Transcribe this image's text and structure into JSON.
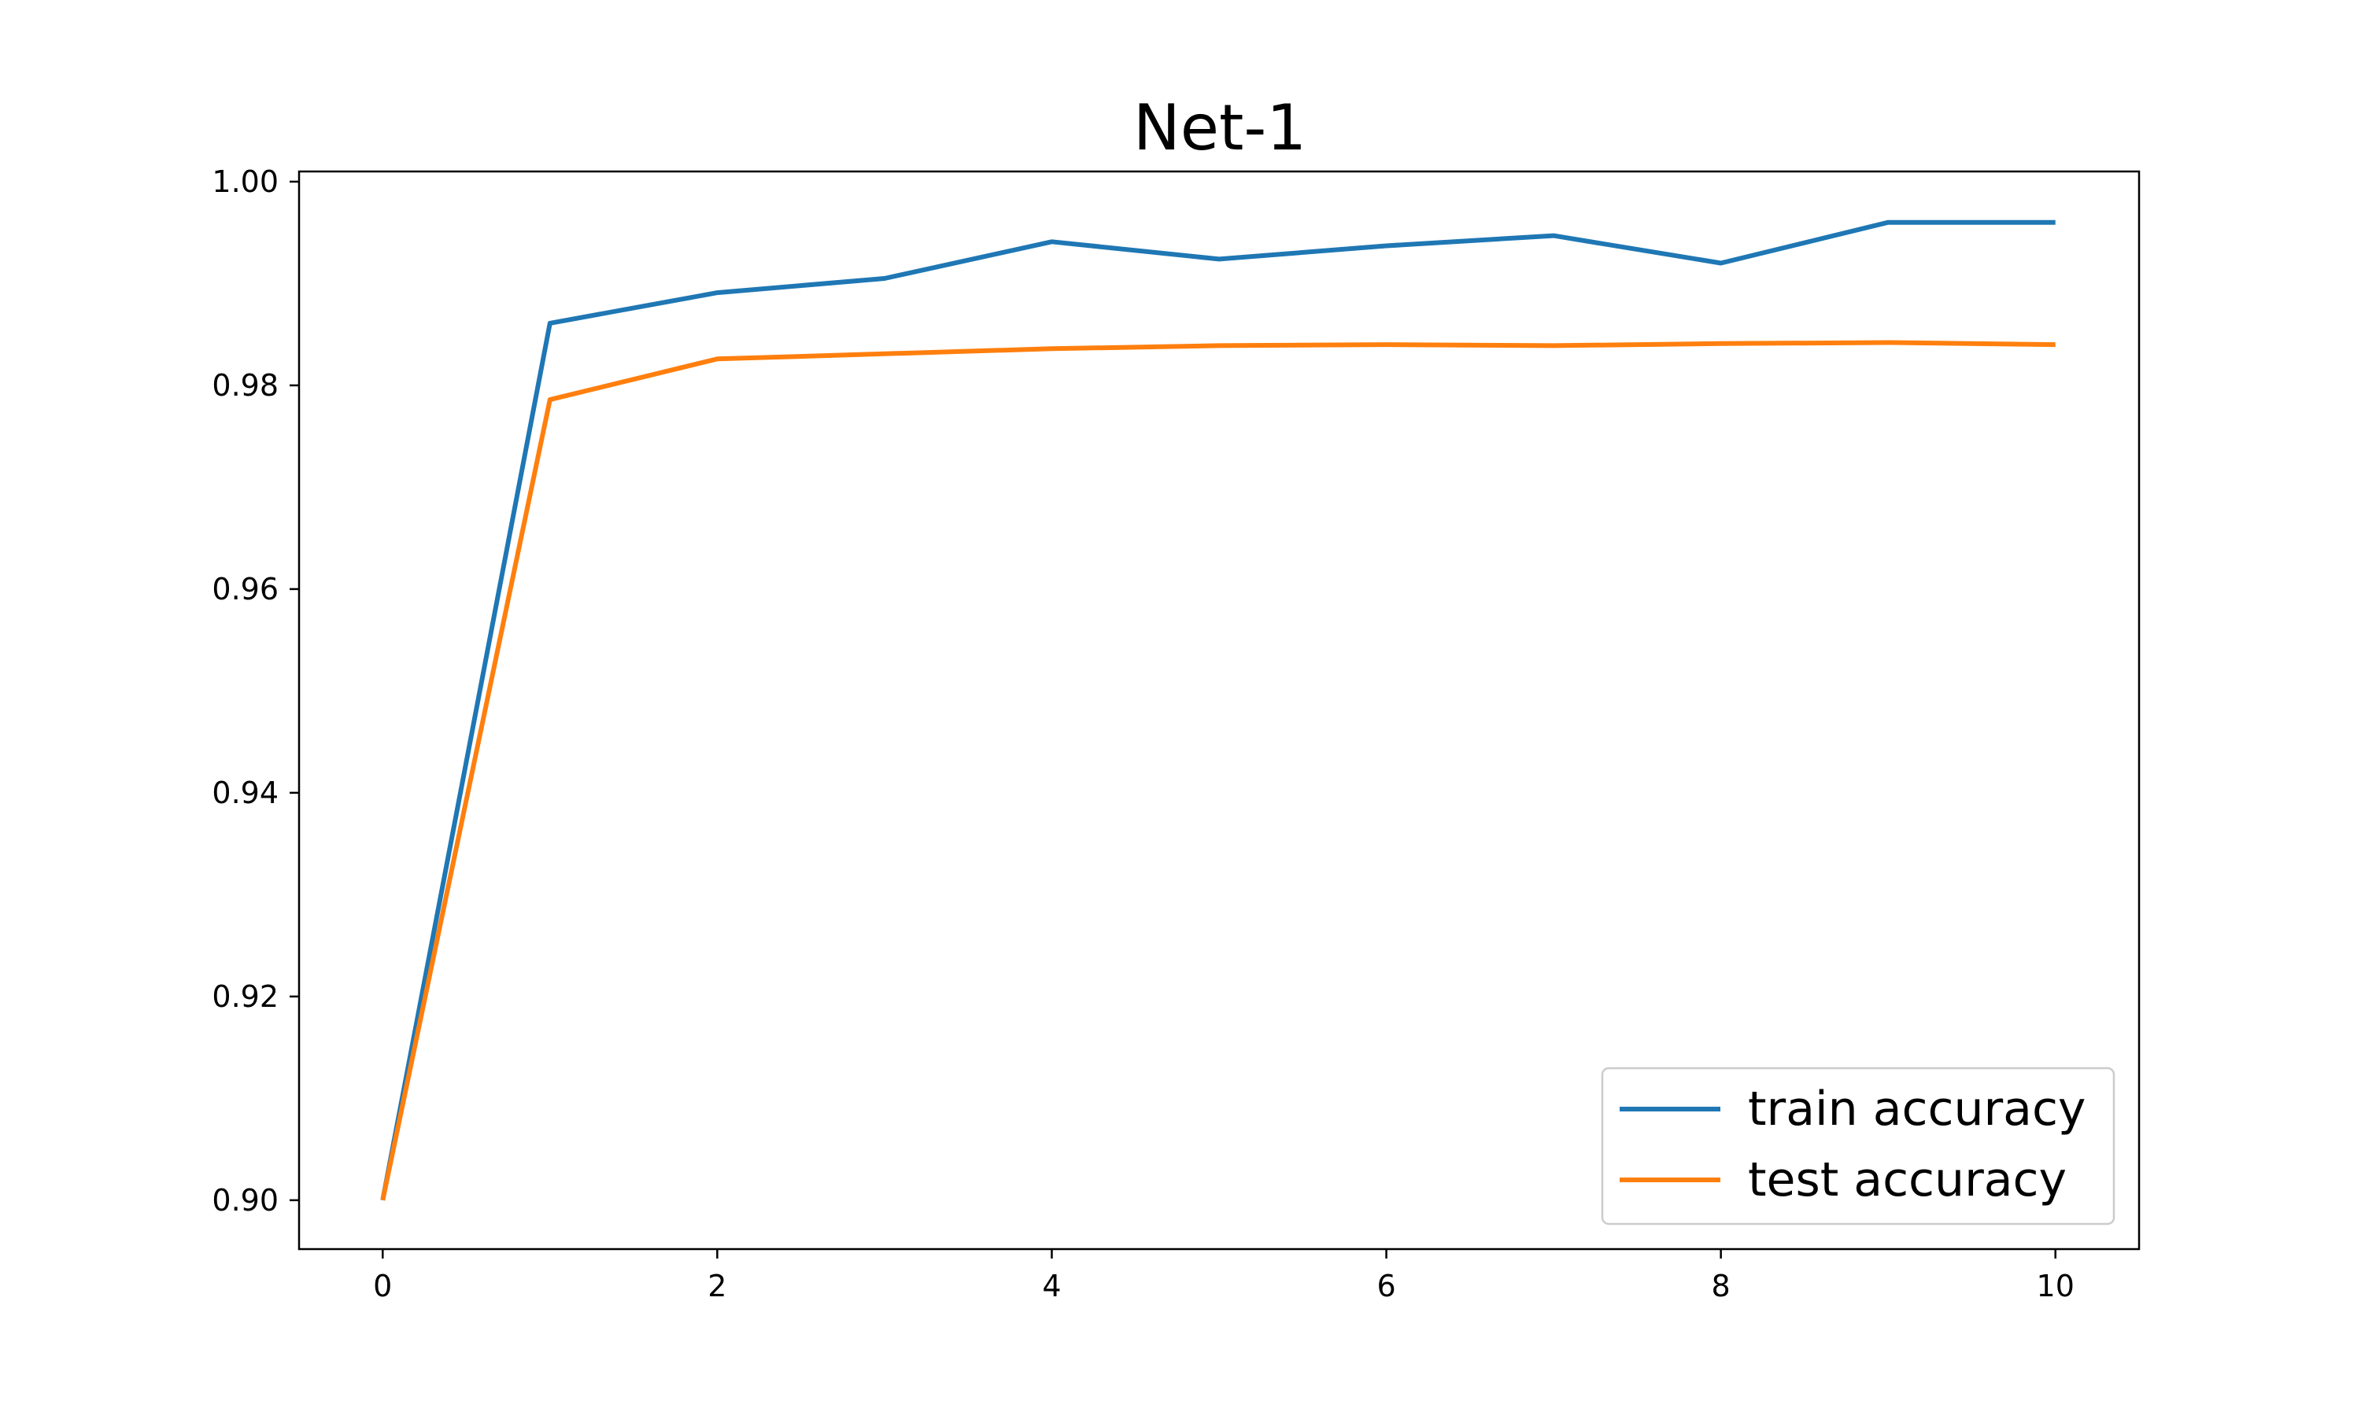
{
  "chart_data": {
    "type": "line",
    "title": "Net-1",
    "xlabel": "",
    "ylabel": "",
    "x": [
      0,
      1,
      2,
      3,
      4,
      5,
      6,
      7,
      8,
      9,
      10
    ],
    "xlim": [
      -0.5,
      10.5
    ],
    "ylim": [
      0.8952,
      1.001
    ],
    "xticks": [
      0,
      2,
      4,
      6,
      8,
      10
    ],
    "xtick_labels": [
      "0",
      "2",
      "4",
      "6",
      "8",
      "10"
    ],
    "yticks": [
      0.9,
      0.92,
      0.94,
      0.96,
      0.98,
      1.0
    ],
    "ytick_labels": [
      "0.90",
      "0.92",
      "0.94",
      "0.96",
      "0.98",
      "1.00"
    ],
    "grid": false,
    "legend_position": "lower-right",
    "series": [
      {
        "name": "train accuracy",
        "color": "#1f77b4",
        "values": [
          0.9,
          0.9861,
          0.9891,
          0.9905,
          0.9941,
          0.9924,
          0.9937,
          0.9947,
          0.992,
          0.996,
          0.996
        ]
      },
      {
        "name": "test accuracy",
        "color": "#ff7f0e",
        "values": [
          0.9,
          0.9786,
          0.9826,
          0.9831,
          0.9836,
          0.9839,
          0.984,
          0.9839,
          0.9841,
          0.9842,
          0.984
        ]
      }
    ]
  }
}
